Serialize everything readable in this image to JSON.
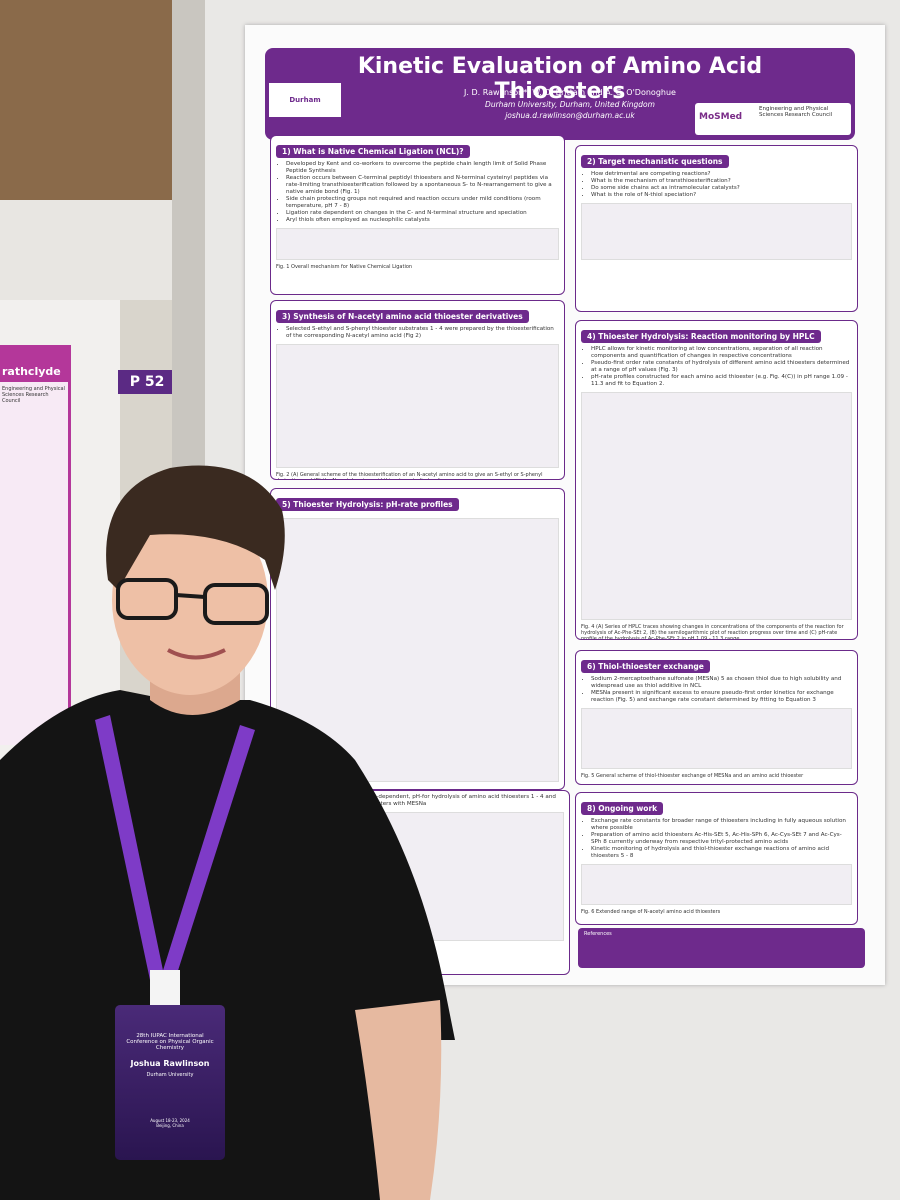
{
  "header": {
    "title": "Kinetic Evaluation of Amino Acid Thioesters",
    "authors": "J. D. Rawlinson*, W. D. Brittain and A. C. O'Donoghue",
    "affiliation": "Durham University, Durham, United Kingdom",
    "email": "joshua.d.rawlinson@durham.ac.uk",
    "logo_left": "Durham University",
    "logo_mid": "MoSMed",
    "logo_right": "Engineering and Physical Sciences Research Council"
  },
  "sections": [
    {
      "heading": "1) What is Native Chemical Ligation (NCL)?",
      "bullets": [
        "Developed by Kent and co-workers to overcome the peptide chain length limit of Solid Phase Peptide Synthesis",
        "Reaction occurs between C-terminal peptidyl thioesters and N-terminal cysteinyl peptides via rate-limiting transthioesterification followed by a spontaneous S- to N-rearrangement to give a native amide bond (Fig. 1)",
        "Side chain protecting groups not required and reaction occurs under mild conditions (room temperature, pH 7 - 8)",
        "Ligation rate dependent on changes in the C- and N-terminal structure and speciation",
        "Aryl thiols often employed as nucleophilic catalysts"
      ],
      "caption": "Fig. 1 Overall mechanism for Native Chemical Ligation"
    },
    {
      "heading": "2) Target mechanistic questions",
      "bullets": [
        "How detrimental are competing reactions?",
        "What is the mechanism of transthioesterification?",
        "Do some side chains act as intramolecular catalysts?",
        "What is the role of N-thiol speciation?"
      ],
      "caption": ""
    },
    {
      "heading": "3) Synthesis of N-acetyl amino acid thioester derivatives",
      "bullets": [
        "Selected S-ethyl and S-phenyl thioester substrates 1 - 4 were prepared by the thioesterification of the corresponding N-acetyl amino acid (Fig 2)"
      ],
      "caption": "Fig. 2 (A) General scheme of the thioesterification of an N-acetyl amino acid to give an S-ethyl or S-phenyl derivative and (B) the N-acetyl amino acid thioesters studied so far"
    },
    {
      "heading": "4) Thioester Hydrolysis: Reaction monitoring by HPLC",
      "bullets": [
        "HPLC allows for kinetic monitoring at low concentrations, separation of all reaction components and quantification of changes in respective concentrations",
        "Pseudo-first order rate constants of hydrolysis of different amino acid thioesters determined at a range of pH values (Fig. 3)",
        "pH-rate profiles constructed for each amino acid thioester (e.g. Fig. 4(C)) in pH range 1.09 - 11.3 and fit to Equation 2."
      ],
      "caption": "Fig. 4 (A) Series of HPLC traces showing changes in concentrations of the components of the reaction for hydrolysis of Ac-Phe-SEt 2, (B) the semilogarithmic plot of reaction progress over time and (C) pH-rate profile of the hydrolysis of Ac-Phe-SEt 2 in pH 1.09 - 11.3 range."
    },
    {
      "heading": "5) Thioester Hydrolysis: pH-rate profiles",
      "bullets": [],
      "caption": ""
    },
    {
      "heading": "6) Thiol-thioester exchange",
      "bullets": [
        "Sodium 2-mercaptoethane sulfonate (MESNa) 5 as chosen thiol due to high solubility and widespread use as thiol additive in NCL",
        "MESNa present in significant excess to ensure pseudo-first order kinetics for exchange reaction (Fig. 5) and exchange rate constant determined by fitting to Equation 3"
      ],
      "caption": "Fig. 5 General scheme of thiol-thioester exchange of MESNa and an amino acid thioester"
    },
    {
      "heading": "",
      "bullets": [
        "ts from fitting to Equation 2 (H+-dependent, pH-for hydrolysis of amino acid thioesters 1 - 4 and for the of these amino acid thioesters with MESNa"
      ],
      "caption": "sters: 1 vs 2 or 3 vs 4"
    },
    {
      "heading": "8) Ongoing work",
      "bullets": [
        "Exchange rate constants for broader range of thioesters including in fully aqueous solution where possible",
        "Preparation of amino acid thioesters Ac-His-SEt 5, Ac-His-SPh 6, Ac-Cys-SEt 7 and Ac-Cys-SPh 8 currently underway from respective trityl-protected amino acids",
        "Kinetic monitoring of hydrolysis and thiol-thioester exchange reactions of amino acid thioesters 5 - 8"
      ],
      "caption": "Fig. 6 Extended range of N-acetyl amino acid thioesters"
    }
  ],
  "references_heading": "References",
  "left_poster": {
    "title": "rathclyde",
    "funder": "Engineering and Physical Sciences Research Council"
  },
  "board_sign": "P 52",
  "badge": {
    "conference": "28th IUPAC International Conference on Physical Organic Chemistry",
    "name": "Joshua Rawlinson",
    "org": "Durham University",
    "dates": "August 18-23, 2024",
    "place": "Beijing, China"
  }
}
